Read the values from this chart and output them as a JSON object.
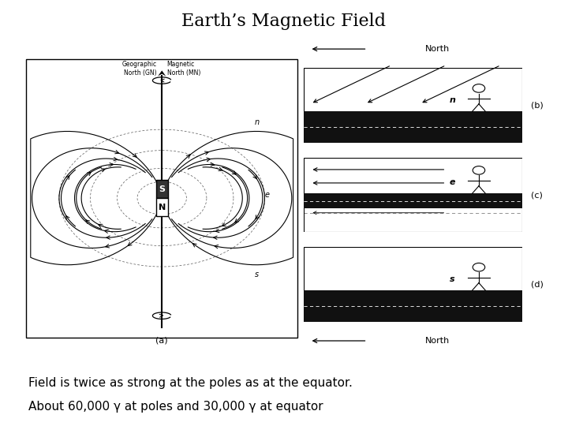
{
  "title": "Earth’s Magnetic Field",
  "title_fontsize": 16,
  "caption_line1": "Field is twice as strong at the poles as at the equator.",
  "caption_line2": "About 60,000 γ at poles and 30,000 γ at equator",
  "caption_fontsize": 11,
  "background_color": "#ffffff",
  "text_color": "#000000",
  "panel_a_label": "(a)",
  "panel_b_label": "(b)",
  "panel_c_label": "(c)",
  "panel_d_label": "(d)",
  "geo_north_label": "Geographic\nNorth (GN)",
  "mag_north_label": "Magnetic\nNorth (MN)",
  "north_label": "North",
  "n_label": "n",
  "e_label": "e",
  "s_label": "s"
}
